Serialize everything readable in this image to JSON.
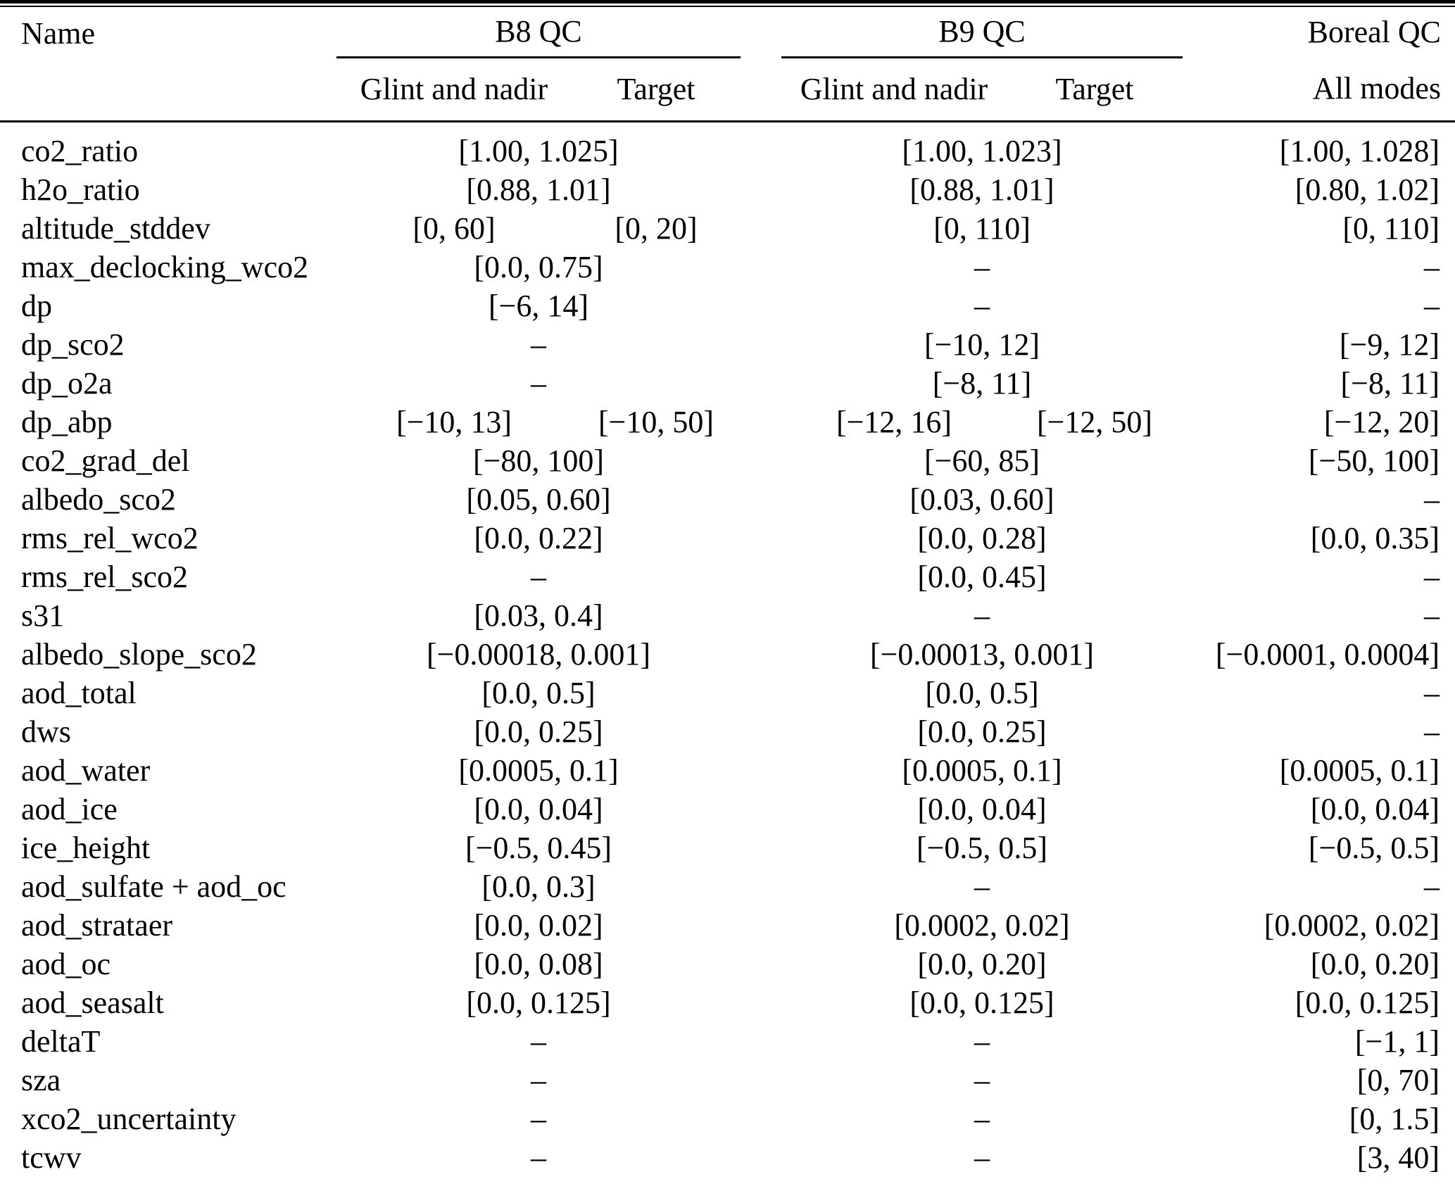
{
  "table": {
    "name_header": "Name",
    "groups": [
      {
        "id": "b8",
        "label": "B8 QC",
        "subcolumns": [
          "Glint and nadir",
          "Target"
        ]
      },
      {
        "id": "b9",
        "label": "B9 QC",
        "subcolumns": [
          "Glint and nadir",
          "Target"
        ]
      },
      {
        "id": "boreal",
        "label": "Boreal QC",
        "subcolumns": [
          "All modes"
        ]
      }
    ],
    "rows": [
      {
        "name": "co2_ratio",
        "b8": [
          "[1.00, 1.025]"
        ],
        "b9": [
          "[1.00, 1.023]"
        ],
        "boreal": "[1.00, 1.028]"
      },
      {
        "name": "h2o_ratio",
        "b8": [
          "[0.88, 1.01]"
        ],
        "b9": [
          "[0.88, 1.01]"
        ],
        "boreal": "[0.80, 1.02]"
      },
      {
        "name": "altitude_stddev",
        "b8": [
          "[0, 60]",
          "[0, 20]"
        ],
        "b9": [
          "[0, 110]"
        ],
        "boreal": "[0, 110]"
      },
      {
        "name": "max_declocking_wco2",
        "b8": [
          "[0.0, 0.75]"
        ],
        "b9": [
          "–"
        ],
        "boreal": "–"
      },
      {
        "name": "dp",
        "b8": [
          "[−6, 14]"
        ],
        "b9": [
          "–"
        ],
        "boreal": "–"
      },
      {
        "name": "dp_sco2",
        "b8": [
          "–"
        ],
        "b9": [
          "[−10, 12]"
        ],
        "boreal": "[−9, 12]"
      },
      {
        "name": "dp_o2a",
        "b8": [
          "–"
        ],
        "b9": [
          "[−8, 11]"
        ],
        "boreal": "[−8, 11]"
      },
      {
        "name": "dp_abp",
        "b8": [
          "[−10, 13]",
          "[−10, 50]"
        ],
        "b9": [
          "[−12, 16]",
          "[−12, 50]"
        ],
        "boreal": "[−12, 20]"
      },
      {
        "name": "co2_grad_del",
        "b8": [
          "[−80, 100]"
        ],
        "b9": [
          "[−60, 85]"
        ],
        "boreal": "[−50, 100]"
      },
      {
        "name": "albedo_sco2",
        "b8": [
          "[0.05, 0.60]"
        ],
        "b9": [
          "[0.03, 0.60]"
        ],
        "boreal": "–"
      },
      {
        "name": "rms_rel_wco2",
        "b8": [
          "[0.0, 0.22]"
        ],
        "b9": [
          "[0.0, 0.28]"
        ],
        "boreal": "[0.0, 0.35]"
      },
      {
        "name": "rms_rel_sco2",
        "b8": [
          "–"
        ],
        "b9": [
          "[0.0, 0.45]"
        ],
        "boreal": "–"
      },
      {
        "name": "s31",
        "b8": [
          "[0.03, 0.4]"
        ],
        "b9": [
          "–"
        ],
        "boreal": "–"
      },
      {
        "name": "albedo_slope_sco2",
        "b8": [
          "[−0.00018, 0.001]"
        ],
        "b9": [
          "[−0.00013, 0.001]"
        ],
        "boreal": "[−0.0001, 0.0004]"
      },
      {
        "name": "aod_total",
        "b8": [
          "[0.0, 0.5]"
        ],
        "b9": [
          "[0.0, 0.5]"
        ],
        "boreal": "–"
      },
      {
        "name": "dws",
        "b8": [
          "[0.0, 0.25]"
        ],
        "b9": [
          "[0.0, 0.25]"
        ],
        "boreal": "–"
      },
      {
        "name": "aod_water",
        "b8": [
          "[0.0005, 0.1]"
        ],
        "b9": [
          "[0.0005, 0.1]"
        ],
        "boreal": "[0.0005, 0.1]"
      },
      {
        "name": "aod_ice",
        "b8": [
          "[0.0, 0.04]"
        ],
        "b9": [
          "[0.0, 0.04]"
        ],
        "boreal": "[0.0, 0.04]"
      },
      {
        "name": "ice_height",
        "b8": [
          "[−0.5, 0.45]"
        ],
        "b9": [
          "[−0.5, 0.5]"
        ],
        "boreal": "[−0.5, 0.5]"
      },
      {
        "name": "aod_sulfate + aod_oc",
        "b8": [
          "[0.0, 0.3]"
        ],
        "b9": [
          "–"
        ],
        "boreal": "–"
      },
      {
        "name": "aod_strataer",
        "b8": [
          "[0.0, 0.02]"
        ],
        "b9": [
          "[0.0002, 0.02]"
        ],
        "boreal": "[0.0002, 0.02]"
      },
      {
        "name": "aod_oc",
        "b8": [
          "[0.0, 0.08]"
        ],
        "b9": [
          "[0.0, 0.20]"
        ],
        "boreal": "[0.0, 0.20]"
      },
      {
        "name": "aod_seasalt",
        "b8": [
          "[0.0, 0.125]"
        ],
        "b9": [
          "[0.0, 0.125]"
        ],
        "boreal": "[0.0, 0.125]"
      },
      {
        "name": "deltaT",
        "b8": [
          "–"
        ],
        "b9": [
          "–"
        ],
        "boreal": "[−1, 1]"
      },
      {
        "name": "sza",
        "b8": [
          "–"
        ],
        "b9": [
          "–"
        ],
        "boreal": "[0, 70]"
      },
      {
        "name": "xco2_uncertainty",
        "b8": [
          "–"
        ],
        "b9": [
          "–"
        ],
        "boreal": "[0, 1.5]"
      },
      {
        "name": "tcwv",
        "b8": [
          "–"
        ],
        "b9": [
          "–"
        ],
        "boreal": "[3, 40]"
      }
    ]
  }
}
